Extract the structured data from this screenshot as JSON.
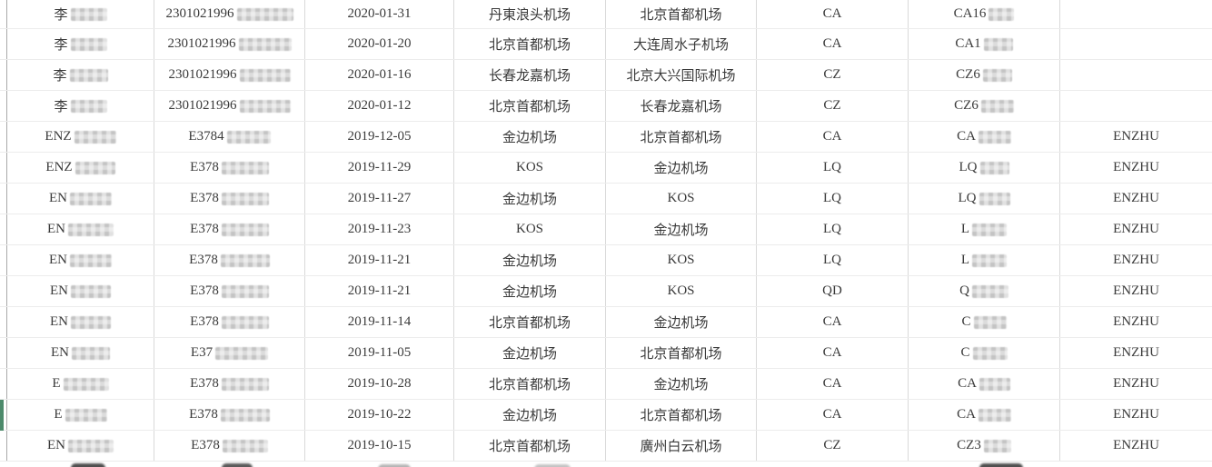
{
  "table": {
    "row_count": 15,
    "accent_color": "#4d8a6b",
    "selected_row_index": 13,
    "rows": [
      {
        "cells": [
          {
            "t": "李",
            "m": 40
          },
          {
            "t": "2301021996",
            "m": 62
          },
          {
            "t": "2020-01-31",
            "m": 0
          },
          {
            "t": "丹東浪头机场",
            "m": 0
          },
          {
            "t": "北京首都机场",
            "m": 0
          },
          {
            "t": "CA",
            "m": 0
          },
          {
            "t": "CA16",
            "m": 28
          },
          {
            "t": "",
            "m": 0
          }
        ]
      },
      {
        "cells": [
          {
            "t": "李",
            "m": 40
          },
          {
            "t": "2301021996",
            "m": 58
          },
          {
            "t": "2020-01-20",
            "m": 0
          },
          {
            "t": "北京首都机场",
            "m": 0
          },
          {
            "t": "大连周水子机场",
            "m": 0
          },
          {
            "t": "CA",
            "m": 0
          },
          {
            "t": "CA1",
            "m": 32
          },
          {
            "t": "",
            "m": 0
          }
        ]
      },
      {
        "cells": [
          {
            "t": "李",
            "m": 42
          },
          {
            "t": "2301021996",
            "m": 56
          },
          {
            "t": "2020-01-16",
            "m": 0
          },
          {
            "t": "长春龙嘉机场",
            "m": 0
          },
          {
            "t": "北京大兴国际机场",
            "m": 0
          },
          {
            "t": "CZ",
            "m": 0
          },
          {
            "t": "CZ6",
            "m": 32
          },
          {
            "t": "",
            "m": 0
          }
        ]
      },
      {
        "cells": [
          {
            "t": "李",
            "m": 40
          },
          {
            "t": "2301021996",
            "m": 56
          },
          {
            "t": "2020-01-12",
            "m": 0
          },
          {
            "t": "北京首都机场",
            "m": 0
          },
          {
            "t": "长春龙嘉机场",
            "m": 0
          },
          {
            "t": "CZ",
            "m": 0
          },
          {
            "t": "CZ6",
            "m": 36
          },
          {
            "t": "",
            "m": 0
          }
        ]
      },
      {
        "cells": [
          {
            "t": "ENZ",
            "m": 46
          },
          {
            "t": "E3784",
            "m": 48
          },
          {
            "t": "2019-12-05",
            "m": 0
          },
          {
            "t": "金边机场",
            "m": 0
          },
          {
            "t": "北京首都机场",
            "m": 0
          },
          {
            "t": "CA",
            "m": 0
          },
          {
            "t": "CA",
            "m": 36
          },
          {
            "t": "ENZHU",
            "m": 0
          }
        ]
      },
      {
        "cells": [
          {
            "t": "ENZ",
            "m": 44
          },
          {
            "t": "E378",
            "m": 52
          },
          {
            "t": "2019-11-29",
            "m": 0
          },
          {
            "t": "KOS",
            "m": 0
          },
          {
            "t": "金边机场",
            "m": 0
          },
          {
            "t": "LQ",
            "m": 0
          },
          {
            "t": "LQ",
            "m": 32
          },
          {
            "t": "ENZHU",
            "m": 0
          }
        ]
      },
      {
        "cells": [
          {
            "t": "EN",
            "m": 46
          },
          {
            "t": "E378",
            "m": 52
          },
          {
            "t": "2019-11-27",
            "m": 0
          },
          {
            "t": "金边机场",
            "m": 0
          },
          {
            "t": "KOS",
            "m": 0
          },
          {
            "t": "LQ",
            "m": 0
          },
          {
            "t": "LQ",
            "m": 34
          },
          {
            "t": "ENZHU",
            "m": 0
          }
        ]
      },
      {
        "cells": [
          {
            "t": "EN",
            "m": 50
          },
          {
            "t": "E378",
            "m": 52
          },
          {
            "t": "2019-11-23",
            "m": 0
          },
          {
            "t": "KOS",
            "m": 0
          },
          {
            "t": "金边机场",
            "m": 0
          },
          {
            "t": "LQ",
            "m": 0
          },
          {
            "t": "L",
            "m": 38
          },
          {
            "t": "ENZHU",
            "m": 0
          }
        ]
      },
      {
        "cells": [
          {
            "t": "EN",
            "m": 46
          },
          {
            "t": "E378",
            "m": 54
          },
          {
            "t": "2019-11-21",
            "m": 0
          },
          {
            "t": "金边机场",
            "m": 0
          },
          {
            "t": "KOS",
            "m": 0
          },
          {
            "t": "LQ",
            "m": 0
          },
          {
            "t": "L",
            "m": 38
          },
          {
            "t": "ENZHU",
            "m": 0
          }
        ]
      },
      {
        "cells": [
          {
            "t": "EN",
            "m": 44
          },
          {
            "t": "E378",
            "m": 52
          },
          {
            "t": "2019-11-21",
            "m": 0
          },
          {
            "t": "金边机场",
            "m": 0
          },
          {
            "t": "KOS",
            "m": 0
          },
          {
            "t": "QD",
            "m": 0
          },
          {
            "t": "Q",
            "m": 40
          },
          {
            "t": "ENZHU",
            "m": 0
          }
        ]
      },
      {
        "cells": [
          {
            "t": "EN",
            "m": 44
          },
          {
            "t": "E378",
            "m": 52
          },
          {
            "t": "2019-11-14",
            "m": 0
          },
          {
            "t": "北京首都机场",
            "m": 0
          },
          {
            "t": "金边机场",
            "m": 0
          },
          {
            "t": "CA",
            "m": 0
          },
          {
            "t": "C",
            "m": 36
          },
          {
            "t": "ENZHU",
            "m": 0
          }
        ]
      },
      {
        "cells": [
          {
            "t": "EN",
            "m": 42
          },
          {
            "t": "E37",
            "m": 58
          },
          {
            "t": "2019-11-05",
            "m": 0
          },
          {
            "t": "金边机场",
            "m": 0
          },
          {
            "t": "北京首都机场",
            "m": 0
          },
          {
            "t": "CA",
            "m": 0
          },
          {
            "t": "C",
            "m": 38
          },
          {
            "t": "ENZHU",
            "m": 0
          }
        ]
      },
      {
        "cells": [
          {
            "t": "E",
            "m": 50
          },
          {
            "t": "E378",
            "m": 52
          },
          {
            "t": "2019-10-28",
            "m": 0
          },
          {
            "t": "北京首都机场",
            "m": 0
          },
          {
            "t": "金边机场",
            "m": 0
          },
          {
            "t": "CA",
            "m": 0
          },
          {
            "t": "CA",
            "m": 34
          },
          {
            "t": "ENZHU",
            "m": 0
          }
        ]
      },
      {
        "cells": [
          {
            "t": "E",
            "m": 46
          },
          {
            "t": "E378",
            "m": 54
          },
          {
            "t": "2019-10-22",
            "m": 0
          },
          {
            "t": "金边机场",
            "m": 0
          },
          {
            "t": "北京首都机场",
            "m": 0
          },
          {
            "t": "CA",
            "m": 0
          },
          {
            "t": "CA",
            "m": 36
          },
          {
            "t": "ENZHU",
            "m": 0
          }
        ]
      },
      {
        "cells": [
          {
            "t": "EN",
            "m": 50
          },
          {
            "t": "E378",
            "m": 50
          },
          {
            "t": "2019-10-15",
            "m": 0
          },
          {
            "t": "北京首都机场",
            "m": 0
          },
          {
            "t": "廣州白云机场",
            "m": 0
          },
          {
            "t": "CZ",
            "m": 0
          },
          {
            "t": "CZ3",
            "m": 30
          },
          {
            "t": "ENZHU",
            "m": 0
          }
        ]
      }
    ]
  }
}
